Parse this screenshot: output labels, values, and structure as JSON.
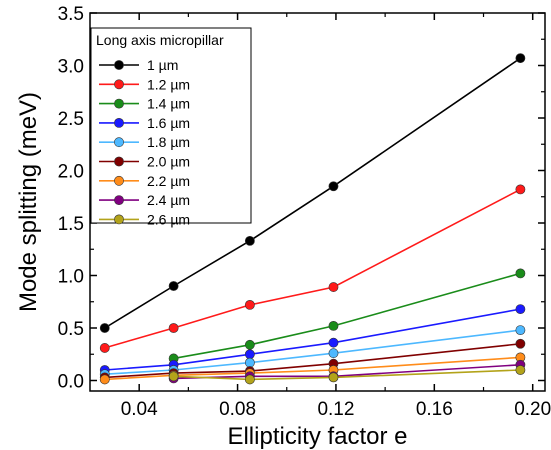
{
  "chart_data": {
    "type": "line",
    "title": "",
    "xlabel": "Ellipticity factor e",
    "ylabel": "Mode splitting (meV)",
    "xlim": [
      0.02,
      0.205
    ],
    "ylim": [
      -0.1,
      3.5
    ],
    "xticks": [
      0.04,
      0.08,
      0.12,
      0.16,
      0.2
    ],
    "xtick_labels": [
      "0.04",
      "0.08",
      "0.12",
      "0.16",
      "0.20"
    ],
    "yticks": [
      0.0,
      0.5,
      1.0,
      1.5,
      2.0,
      2.5,
      3.0,
      3.5
    ],
    "ytick_labels": [
      "0.0",
      "0.5",
      "1.0",
      "1.5",
      "2.0",
      "2.5",
      "3.0",
      "3.5"
    ],
    "grid": false,
    "legend": {
      "title": "Long axis micropillar",
      "placement": "top-left"
    },
    "series": [
      {
        "name": "1 µm",
        "color": "#000000",
        "x": [
          0.026,
          0.054,
          0.085,
          0.119,
          0.195
        ],
        "y": [
          0.5,
          0.9,
          1.33,
          1.85,
          3.07
        ]
      },
      {
        "name": "1.2 µm",
        "color": "#ff1a1a",
        "x": [
          0.026,
          0.054,
          0.085,
          0.119,
          0.195
        ],
        "y": [
          0.31,
          0.5,
          0.72,
          0.89,
          1.82
        ]
      },
      {
        "name": "1.4 µm",
        "color": "#1a8c1a",
        "x": [
          0.054,
          0.085,
          0.119,
          0.195
        ],
        "y": [
          0.21,
          0.34,
          0.52,
          1.02
        ]
      },
      {
        "name": "1.6 µm",
        "color": "#1a1aff",
        "x": [
          0.026,
          0.054,
          0.085,
          0.119,
          0.195
        ],
        "y": [
          0.1,
          0.15,
          0.25,
          0.36,
          0.68
        ]
      },
      {
        "name": "1.8 µm",
        "color": "#4db8ff",
        "x": [
          0.026,
          0.054,
          0.085,
          0.119,
          0.195
        ],
        "y": [
          0.06,
          0.1,
          0.17,
          0.26,
          0.48
        ]
      },
      {
        "name": "2.0 µm",
        "color": "#800000",
        "x": [
          0.026,
          0.054,
          0.085,
          0.119,
          0.195
        ],
        "y": [
          0.03,
          0.07,
          0.09,
          0.16,
          0.35
        ]
      },
      {
        "name": "2.2 µm",
        "color": "#ff8c1a",
        "x": [
          0.026,
          0.054,
          0.085,
          0.119,
          0.195
        ],
        "y": [
          0.01,
          0.05,
          0.07,
          0.1,
          0.22
        ]
      },
      {
        "name": "2.4 µm",
        "color": "#800080",
        "x": [
          0.054,
          0.085,
          0.119,
          0.195
        ],
        "y": [
          0.02,
          0.04,
          0.04,
          0.15
        ]
      },
      {
        "name": "2.6 µm",
        "color": "#b3a31a",
        "x": [
          0.054,
          0.085,
          0.119,
          0.195
        ],
        "y": [
          0.04,
          0.01,
          0.03,
          0.1
        ]
      }
    ]
  }
}
